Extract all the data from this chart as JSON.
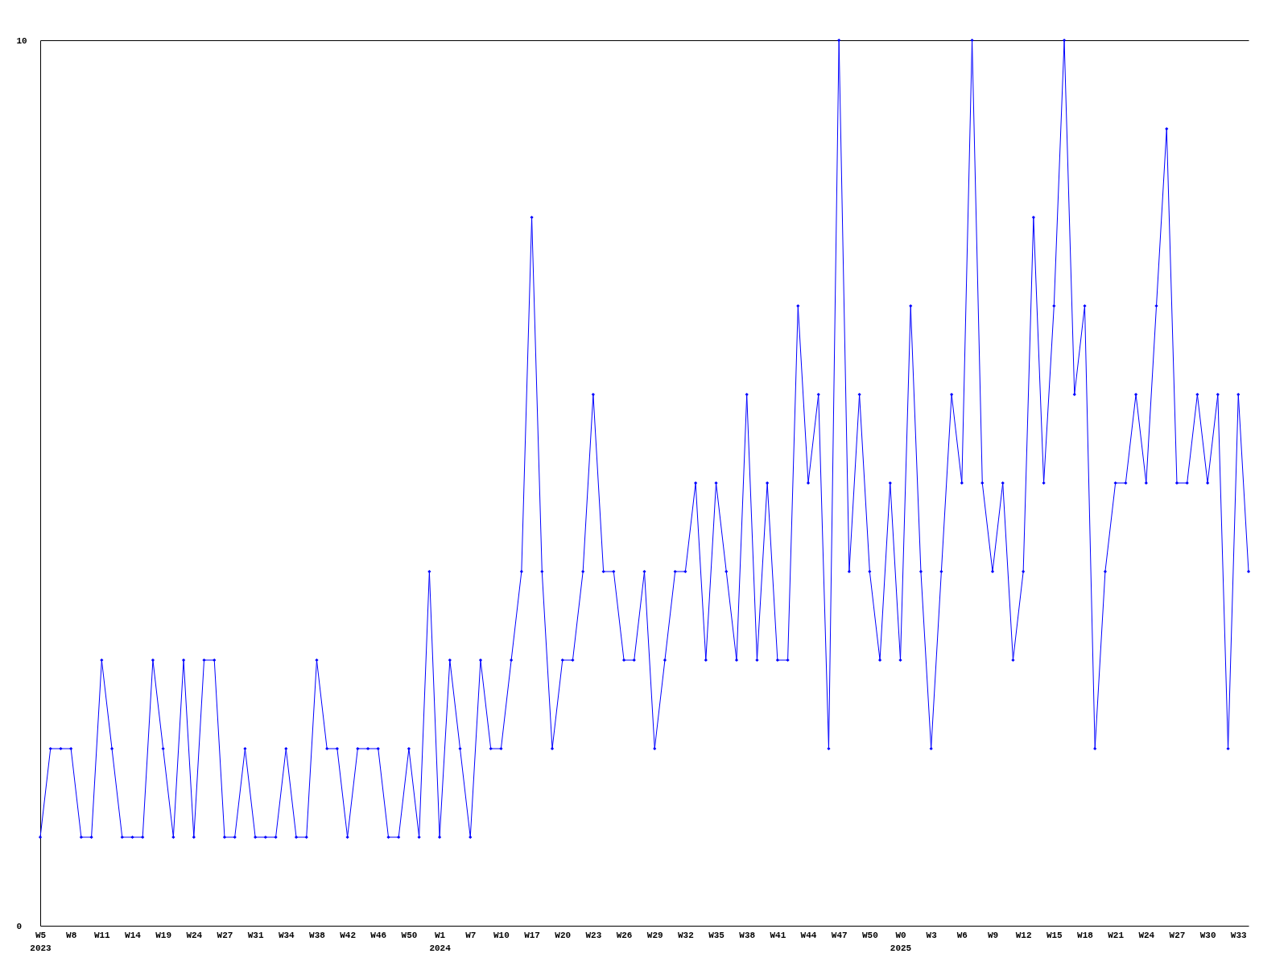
{
  "chart_data": {
    "type": "line",
    "categories": [
      "W5\n2023",
      null,
      null,
      "W8",
      null,
      null,
      "W11",
      null,
      null,
      "W14",
      null,
      null,
      "W19",
      null,
      null,
      "W24",
      null,
      null,
      "W27",
      null,
      null,
      "W31",
      null,
      null,
      "W34",
      null,
      null,
      "W38",
      null,
      null,
      "W42",
      null,
      null,
      "W46",
      null,
      null,
      "W50",
      null,
      null,
      "W1\n2024",
      null,
      null,
      "W7",
      null,
      null,
      "W10",
      null,
      null,
      "W17",
      null,
      null,
      "W20",
      null,
      null,
      "W23",
      null,
      null,
      "W26",
      null,
      null,
      "W29",
      null,
      null,
      "W32",
      null,
      null,
      "W35",
      null,
      null,
      "W38",
      null,
      null,
      "W41",
      null,
      null,
      "W44",
      null,
      null,
      "W47",
      null,
      null,
      "W50",
      null,
      null,
      "W0\n2025",
      null,
      null,
      "W3",
      null,
      null,
      "W6",
      null,
      null,
      "W9",
      null,
      null,
      "W12",
      null,
      null,
      "W15",
      null,
      null,
      "W18",
      null,
      null,
      "W21",
      null,
      null,
      "W24",
      null,
      null,
      "W27",
      null,
      null,
      "W30",
      null,
      null,
      "W33",
      null
    ],
    "series": [
      {
        "color": "#0000ff",
        "values": [
          1,
          2,
          2,
          2,
          1,
          1,
          3,
          2,
          1,
          1,
          1,
          3,
          2,
          1,
          3,
          1,
          3,
          3,
          1,
          1,
          2,
          1,
          1,
          1,
          2,
          1,
          1,
          3,
          2,
          2,
          1,
          2,
          2,
          2,
          1,
          1,
          2,
          1,
          4,
          1,
          3,
          2,
          1,
          3,
          2,
          2,
          3,
          4,
          8,
          4,
          2,
          3,
          3,
          4,
          6,
          4,
          4,
          3,
          3,
          4,
          2,
          3,
          4,
          4,
          5,
          3,
          5,
          4,
          3,
          6,
          3,
          5,
          3,
          3,
          7,
          5,
          6,
          2,
          10,
          4,
          6,
          4,
          3,
          5,
          3,
          7,
          4,
          2,
          4,
          6,
          5,
          10,
          5,
          4,
          5,
          3,
          4,
          8,
          5,
          7,
          10,
          6,
          7,
          2,
          4,
          5,
          5,
          6,
          5,
          7,
          9,
          5,
          5,
          6,
          5,
          6,
          2,
          6,
          4
        ]
      }
    ],
    "ylim": [
      0,
      10
    ],
    "yticks": [
      0,
      10
    ],
    "marker": "diamond",
    "line_style": "solid"
  }
}
